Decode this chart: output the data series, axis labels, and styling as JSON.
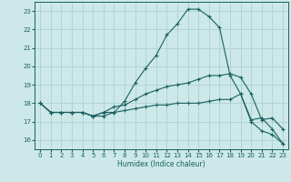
{
  "xlabel": "Humidex (Indice chaleur)",
  "bg_color": "#cce8e8",
  "line_color": "#1a6060",
  "grid_color": "#aacccc",
  "xlim": [
    -0.5,
    23.5
  ],
  "ylim": [
    15.5,
    23.5
  ],
  "yticks": [
    16,
    17,
    18,
    19,
    20,
    21,
    22,
    23
  ],
  "xticks": [
    0,
    1,
    2,
    3,
    4,
    5,
    6,
    7,
    8,
    9,
    10,
    11,
    12,
    13,
    14,
    15,
    16,
    17,
    18,
    19,
    20,
    21,
    22,
    23
  ],
  "curve1_x": [
    0,
    1,
    2,
    3,
    4,
    5,
    6,
    7,
    8,
    9,
    10,
    11,
    12,
    13,
    14,
    15,
    16,
    17,
    18,
    19,
    20,
    21,
    22,
    23
  ],
  "curve1_y": [
    18.0,
    17.5,
    17.5,
    17.5,
    17.5,
    17.3,
    17.5,
    17.5,
    18.1,
    19.1,
    19.9,
    20.6,
    21.7,
    22.3,
    23.1,
    23.1,
    22.7,
    22.1,
    19.5,
    18.5,
    17.1,
    17.2,
    16.6,
    15.8
  ],
  "curve2_x": [
    0,
    1,
    2,
    3,
    4,
    5,
    6,
    7,
    8,
    9,
    10,
    11,
    12,
    13,
    14,
    15,
    16,
    17,
    18,
    19,
    20,
    21,
    22,
    23
  ],
  "curve2_y": [
    18.0,
    17.5,
    17.5,
    17.5,
    17.5,
    17.3,
    17.5,
    17.8,
    17.9,
    18.2,
    18.5,
    18.7,
    18.9,
    19.0,
    19.1,
    19.3,
    19.5,
    19.5,
    19.6,
    19.4,
    18.5,
    17.1,
    17.2,
    16.6
  ],
  "curve3_x": [
    0,
    1,
    2,
    3,
    4,
    5,
    6,
    7,
    8,
    9,
    10,
    11,
    12,
    13,
    14,
    15,
    16,
    17,
    18,
    19,
    20,
    21,
    22,
    23
  ],
  "curve3_y": [
    18.0,
    17.5,
    17.5,
    17.5,
    17.5,
    17.3,
    17.3,
    17.5,
    17.6,
    17.7,
    17.8,
    17.9,
    17.9,
    18.0,
    18.0,
    18.0,
    18.1,
    18.2,
    18.2,
    18.5,
    17.0,
    16.5,
    16.3,
    15.8
  ]
}
